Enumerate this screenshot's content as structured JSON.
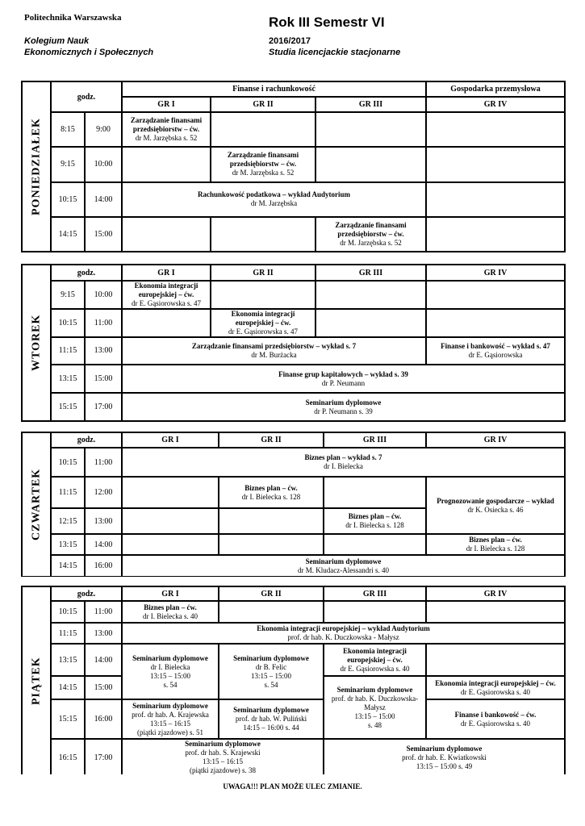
{
  "header": {
    "university": "Politechnika Warszawska",
    "title": "Rok  III Semestr VI",
    "faculty": "Kolegium Nauk\nEkonomicznych i Społecznych",
    "year": "2016/2017",
    "study_mode": "Studia licencjackie stacjonarne"
  },
  "common": {
    "hours": "godz.",
    "gr1": "GR I",
    "gr2": "GR II",
    "gr3": "GR III",
    "gr4": "GR IV"
  },
  "monday": {
    "day": "PONIEDZIAŁEK",
    "major1": "Finanse i rachunkowość",
    "major2": "Gospodarka przemysłowa",
    "times": [
      [
        "8:15",
        "9:00"
      ],
      [
        "9:15",
        "10:00"
      ],
      [
        "10:15",
        "14:00"
      ],
      [
        "14:15",
        "15:00"
      ]
    ],
    "c1": {
      "t": "Zarządzanie finansami\nprzedsiębiorstw – ćw.",
      "n": "dr M. Jarzębska s. 52"
    },
    "c2": {
      "t": "Zarządzanie finansami\nprzedsiębiorstw – ćw.",
      "n": "dr M. Jarzębska s. 52"
    },
    "c3": {
      "t": "Rachunkowość podatkowa – wykład Audytorium",
      "n": "dr M. Jarzębska"
    },
    "c4": {
      "t": "Zarządzanie finansami\nprzedsiębiorstw – ćw.",
      "n": "dr M. Jarzębska s. 52"
    }
  },
  "tuesday": {
    "day": "WTOREK",
    "times": [
      [
        "9:15",
        "10:00"
      ],
      [
        "10:15",
        "11:00"
      ],
      [
        "11:15",
        "13:00"
      ],
      [
        "13:15",
        "15:00"
      ],
      [
        "15:15",
        "17:00"
      ]
    ],
    "c1": {
      "t": "Ekonomia integracji\neuropejskiej – ćw.",
      "n": "dr E. Gąsiorowska s. 47"
    },
    "c2": {
      "t": "Ekonomia integracji\neuropejskiej – ćw.",
      "n": "dr E. Gąsiorowska s. 47"
    },
    "c3": {
      "t": "Zarządzanie finansami przedsiębiorstw – wykład  s. 7",
      "n": "dr M. Burżacka"
    },
    "c4": {
      "t": "Finanse i bankowość – wykład s. 47",
      "n": "dr E. Gąsiorowska"
    },
    "c5": {
      "t": "Finanse grup kapitałowych – wykład s. 39",
      "n": "dr P. Neumann"
    },
    "c6": {
      "t": "Seminarium dyplomowe",
      "n": "dr P. Neumann  s. 39"
    }
  },
  "thursday": {
    "day": "CZWARTEK",
    "times": [
      [
        "10:15",
        "11:00"
      ],
      [
        "11:15",
        "12:00"
      ],
      [
        "12:15",
        "13:00"
      ],
      [
        "13:15",
        "14:00"
      ],
      [
        "14:15",
        "16:00"
      ]
    ],
    "c1": {
      "t": "Biznes plan – wykład s. 7",
      "n": "dr I. Bielecka"
    },
    "c2": {
      "t": "Biznes plan – ćw.",
      "n": "dr I. Bielecka  s. 128"
    },
    "c3": {
      "t": "Prognozowanie gospodarcze – wykład",
      "n": "dr K. Osiecka s. 46"
    },
    "c4": {
      "t": "Biznes plan – ćw.",
      "n": "dr I. Bielecka  s. 128"
    },
    "c5": {
      "t": "Biznes plan – ćw.",
      "n": "dr I. Bielecka  s. 128"
    },
    "c6": {
      "t": "Seminarium dyplomowe",
      "n": "dr M. Kludacz-Alessandri s. 40"
    }
  },
  "friday": {
    "day": "PIĄTEK",
    "times": [
      [
        "10:15",
        "11:00"
      ],
      [
        "11:15",
        "13:00"
      ],
      [
        "13:15",
        "14:00"
      ],
      [
        "14:15",
        "15:00"
      ],
      [
        "15:15",
        "16:00"
      ],
      [
        "16:15",
        "17:00"
      ]
    ],
    "c1": {
      "t": "Biznes plan – ćw.",
      "n": "dr I. Bielecka   s. 40"
    },
    "c2": {
      "t": "Ekonomia integracji europejskiej – wykład Audytorium",
      "n": "prof. dr hab. K. Duczkowska - Małysz"
    },
    "c3": {
      "t": "Seminarium dyplomowe",
      "n": "dr I. Bielecka\n13:15 – 15:00\ns. 54"
    },
    "c4": {
      "t": "Seminarium dyplomowe",
      "n": "dr B. Felic\n13:15 – 15:00\ns. 54"
    },
    "c5": {
      "t": "Ekonomia integracji\neuropejskiej – ćw.",
      "n": "dr E. Gąsiorowska s. 40"
    },
    "c6": {
      "t": "Seminarium dyplomowe",
      "n": "prof. dr hab. K. Duczkowska-\nMałysz\n13:15 – 15:00\ns. 48"
    },
    "c7": {
      "t": "Ekonomia integracji europejskiej – ćw.",
      "n": "dr E. Gąsiorowska s. 40"
    },
    "c8": {
      "t": "Seminarium dyplomowe",
      "n": "prof. dr hab. A. Krajewska\n13:15 – 16:15\n(piątki zjazdowe) s. 51"
    },
    "c9": {
      "t": "Seminarium dyplomowe",
      "n": "prof. dr hab. W. Puliński\n14:15 – 16:00 s. 44"
    },
    "c10": {
      "t": "Finanse i bankowość – ćw.",
      "n": "dr E. Gąsiorowska s. 40"
    },
    "c11": {
      "t": "Seminarium dyplomowe",
      "n": "prof. dr hab. S. Krajewski\n13:15 – 16:15\n(piątki zjazdowe)  s. 38"
    },
    "c12": {
      "t": "Seminarium dyplomowe",
      "n": "prof. dr hab. E. Kwiatkowski\n13:15 – 15:00  s. 49"
    }
  },
  "footer": {
    "note": "UWAGA!!!  PLAN  MOŻE  ULEC  ZMIANIE."
  }
}
